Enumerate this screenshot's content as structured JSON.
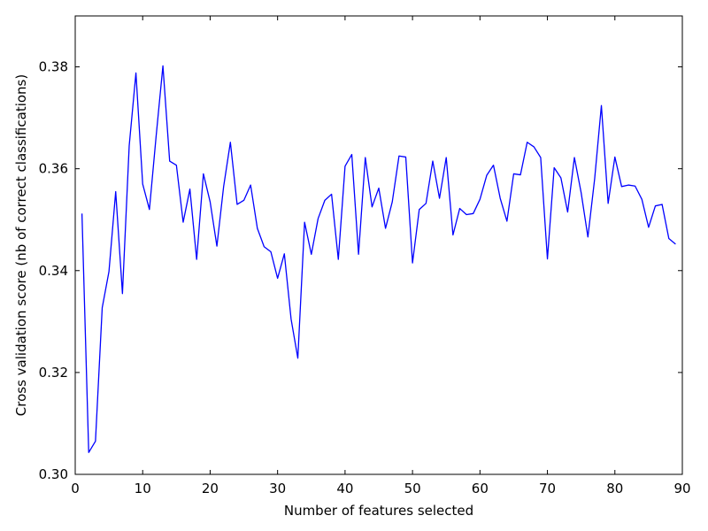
{
  "chart_data": {
    "type": "line",
    "title": "",
    "xlabel": "Number of features selected",
    "ylabel": "Cross validation score (nb of correct classifications)",
    "xlim": [
      0,
      90
    ],
    "ylim": [
      0.3,
      0.39
    ],
    "xticks": [
      0,
      10,
      20,
      30,
      40,
      50,
      60,
      70,
      80,
      90
    ],
    "xtick_labels": [
      "0",
      "10",
      "20",
      "30",
      "40",
      "50",
      "60",
      "70",
      "80",
      "90"
    ],
    "yticks": [
      0.3,
      0.32,
      0.34,
      0.36,
      0.38
    ],
    "ytick_labels": [
      "0.30",
      "0.32",
      "0.34",
      "0.36",
      "0.38"
    ],
    "grid": false,
    "line_color": "#0000ff",
    "series": [
      {
        "x": [
          1,
          2,
          3,
          4,
          5,
          6,
          7,
          8,
          9,
          10,
          11,
          12,
          13,
          14,
          15,
          16,
          17,
          18,
          19,
          20,
          21,
          22,
          23,
          24,
          25,
          26,
          27,
          28,
          29,
          30,
          31,
          32,
          33,
          34,
          35,
          36,
          37,
          38,
          39,
          40,
          41,
          42,
          43,
          44,
          45,
          46,
          47,
          48,
          49,
          50,
          51,
          52,
          53,
          54,
          55,
          56,
          57,
          58,
          59,
          60,
          61,
          62,
          63,
          64,
          65,
          66,
          67,
          68,
          69,
          70,
          71,
          72,
          73,
          74,
          75,
          76,
          77,
          78,
          79,
          80,
          81,
          82,
          83,
          84,
          85,
          86,
          87,
          88,
          89
        ],
        "values": [
          0.3512,
          0.3043,
          0.3065,
          0.3327,
          0.3398,
          0.3555,
          0.3355,
          0.3645,
          0.3788,
          0.357,
          0.352,
          0.3665,
          0.3802,
          0.3615,
          0.3607,
          0.3495,
          0.356,
          0.3422,
          0.359,
          0.3535,
          0.3448,
          0.3565,
          0.3652,
          0.353,
          0.3538,
          0.3568,
          0.3483,
          0.3447,
          0.3437,
          0.3385,
          0.3433,
          0.3305,
          0.3228,
          0.3495,
          0.3432,
          0.3502,
          0.3538,
          0.355,
          0.3422,
          0.3605,
          0.3628,
          0.3432,
          0.3622,
          0.3525,
          0.3562,
          0.3483,
          0.3535,
          0.3625,
          0.3623,
          0.3415,
          0.352,
          0.3532,
          0.3615,
          0.3542,
          0.3622,
          0.347,
          0.3522,
          0.351,
          0.3512,
          0.354,
          0.3587,
          0.3607,
          0.3542,
          0.3497,
          0.359,
          0.3588,
          0.3652,
          0.3643,
          0.3622,
          0.3423,
          0.3602,
          0.3582,
          0.3515,
          0.3622,
          0.3553,
          0.3466,
          0.358,
          0.3724,
          0.3532,
          0.3623,
          0.3565,
          0.3568,
          0.3566,
          0.354,
          0.3485,
          0.3527,
          0.353,
          0.3463,
          0.3452
        ]
      }
    ]
  }
}
